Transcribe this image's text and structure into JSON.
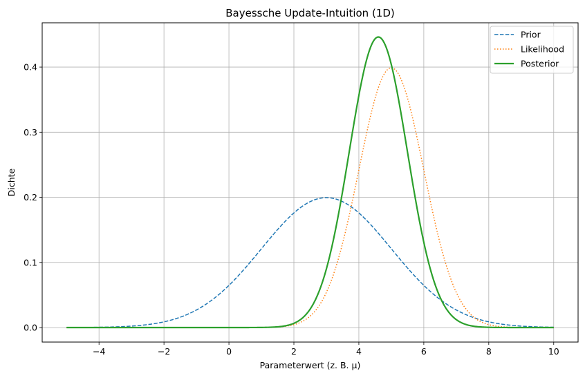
{
  "chart_data": {
    "type": "line",
    "title": "Bayessche Update-Intuition (1D)",
    "xlabel": "Parameterwert (z. B. μ)",
    "ylabel": "Dichte",
    "xlim": [
      -5.75,
      10.75
    ],
    "ylim": [
      -0.0223,
      0.468
    ],
    "xticks": [
      -4,
      -2,
      0,
      2,
      4,
      6,
      8,
      10
    ],
    "yticks": [
      0.0,
      0.1,
      0.2,
      0.3,
      0.4
    ],
    "ytick_labels": [
      "0.0",
      "0.1",
      "0.2",
      "0.3",
      "0.4"
    ],
    "grid": true,
    "legend_position": "top-right",
    "x_range": [
      -5,
      10
    ],
    "series": [
      {
        "name": "Prior",
        "distribution": "normal",
        "mean": 3,
        "std": 2,
        "style": "dashed",
        "color": "#1f77b4",
        "width": 1.5
      },
      {
        "name": "Likelihood",
        "distribution": "normal",
        "mean": 5,
        "std": 1,
        "style": "dotted",
        "color": "#ff7f0e",
        "width": 1.5
      },
      {
        "name": "Posterior",
        "distribution": "normal",
        "mean": 4.6,
        "std": 0.894,
        "style": "solid",
        "color": "#2ca02c",
        "width": 2.2
      }
    ]
  }
}
